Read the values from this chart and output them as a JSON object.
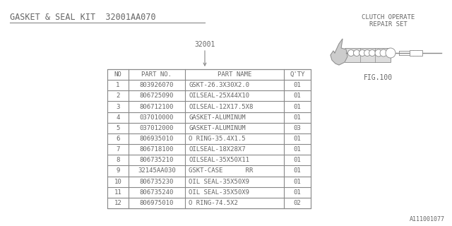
{
  "title": "GASKET & SEAL KIT  32001AA070",
  "ref_label": "32001",
  "fig_label": "FIG.100",
  "clutch_label1": "CLUTCH OPERATE",
  "clutch_label2": "REPAIR SET",
  "footer": "A111001077",
  "bg_color": "#ffffff",
  "table_header": [
    "NO",
    "PART NO.",
    "PART NAME",
    "Q'TY"
  ],
  "rows": [
    [
      "1",
      "803926070",
      "GSKT-26.3X30X2.0",
      "01"
    ],
    [
      "2",
      "806725090",
      "OILSEAL-25X44X10",
      "01"
    ],
    [
      "3",
      "806712100",
      "OILSEAL-12X17.5X8",
      "01"
    ],
    [
      "4",
      "037010000",
      "GASKET-ALUMINUM",
      "01"
    ],
    [
      "5",
      "037012000",
      "GASKET-ALUMINUM",
      "03"
    ],
    [
      "6",
      "806935010",
      "O RING-35.4X1.5",
      "01"
    ],
    [
      "7",
      "806718100",
      "OILSEAL-18X28X7",
      "01"
    ],
    [
      "8",
      "806735210",
      "OILSEAL-35X50X11",
      "01"
    ],
    [
      "9",
      "32145AA030",
      "GSKT-CASE      RR",
      "01"
    ],
    [
      "10",
      "806735230",
      "OIL SEAL-35X50X9",
      "01"
    ],
    [
      "11",
      "806735240",
      "OIL SEAL-35X50X9",
      "01"
    ],
    [
      "12",
      "806975010",
      "O RING-74.5X2",
      "02"
    ]
  ],
  "text_color": "#666666",
  "line_color": "#888888"
}
